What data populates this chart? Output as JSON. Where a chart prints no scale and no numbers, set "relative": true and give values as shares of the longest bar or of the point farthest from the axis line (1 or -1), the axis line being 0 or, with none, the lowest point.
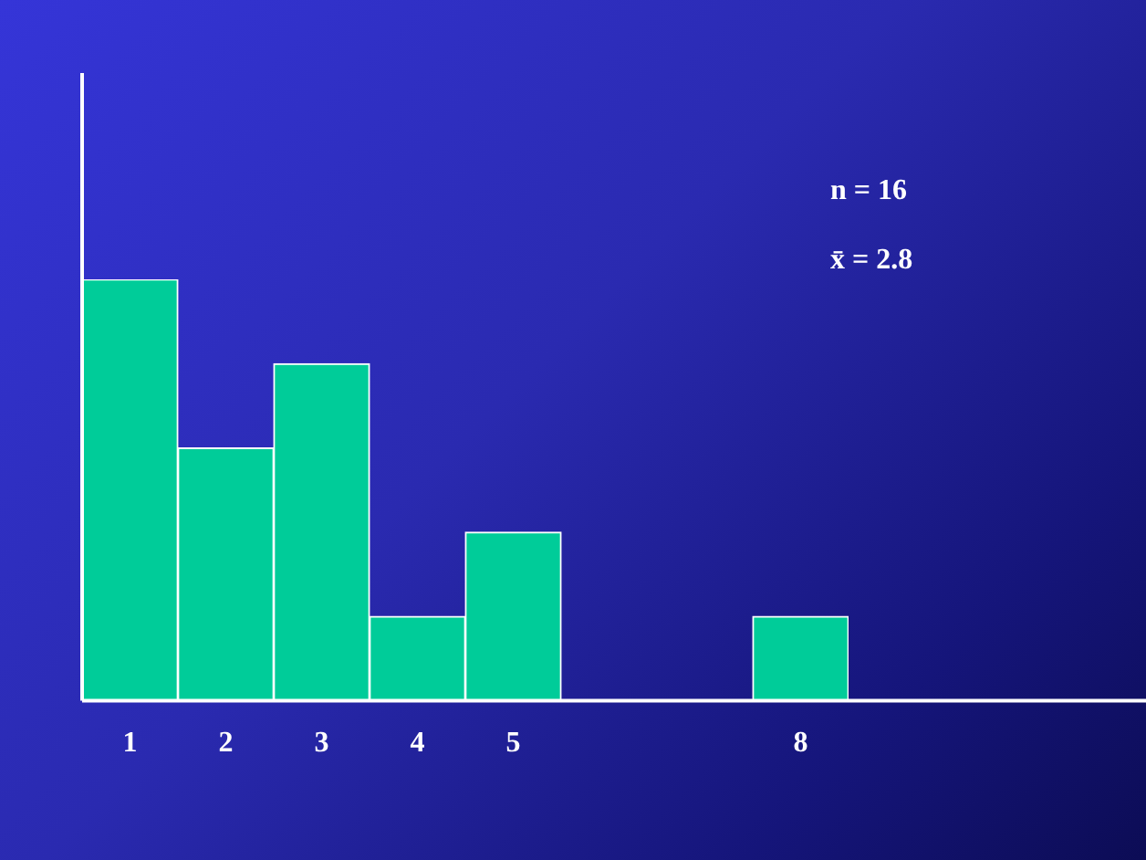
{
  "chart_data": {
    "type": "bar",
    "relative": true,
    "categories": [
      "1",
      "2",
      "3",
      "4",
      "5",
      null,
      null,
      "8"
    ],
    "values": [
      1,
      0.6,
      0.8,
      0.2,
      0.4,
      null,
      null,
      0.2
    ],
    "color": "#00cc99",
    "annotations": [
      "n = 16",
      "x̄ = 2.8"
    ]
  }
}
